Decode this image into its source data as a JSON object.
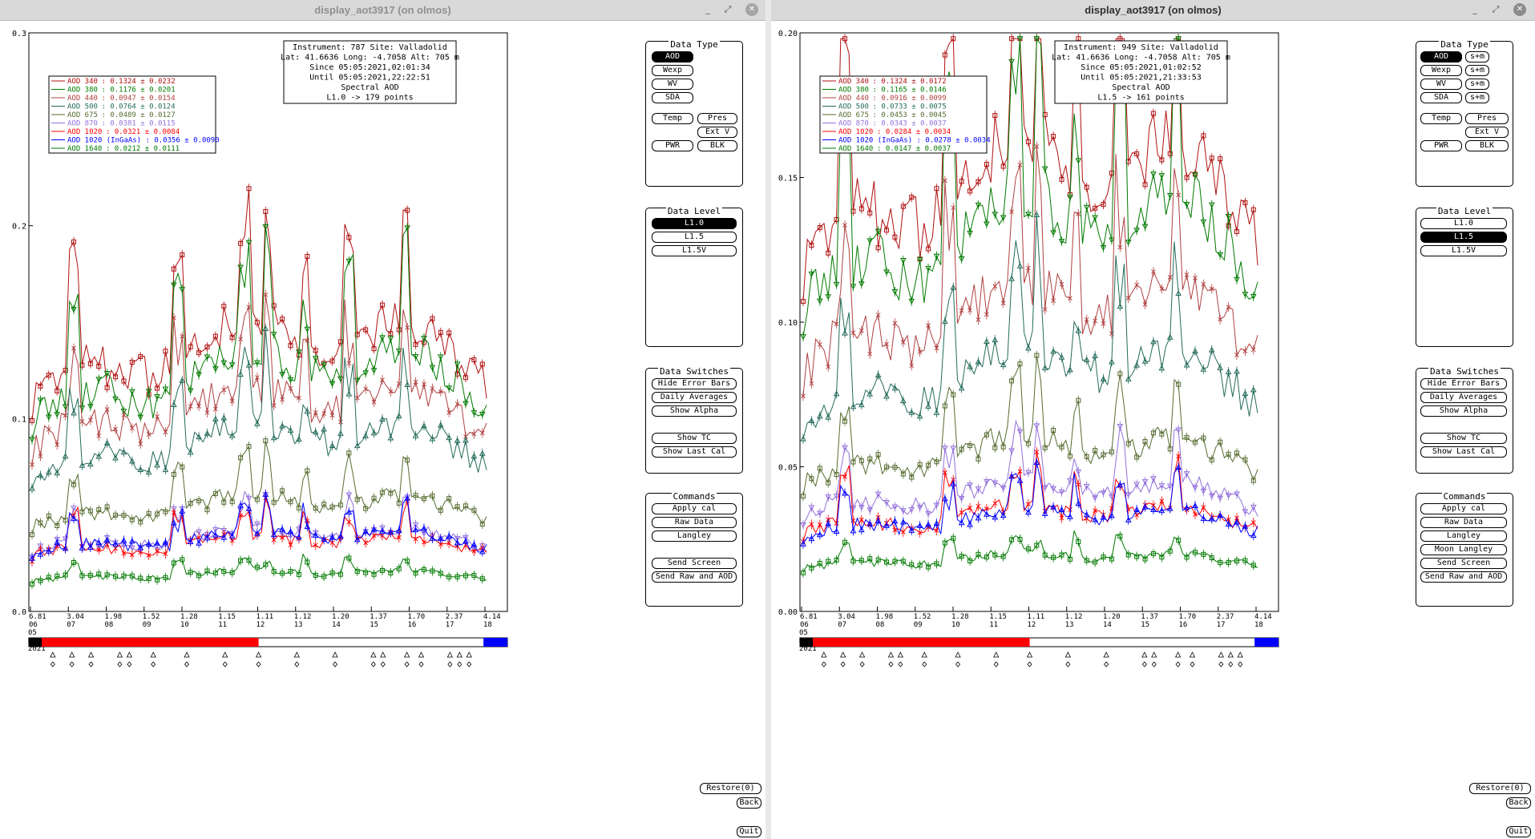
{
  "windows": [
    {
      "title": "display_aot3917 (on olmos)",
      "info": {
        "instrument": "Instrument: 787 Site: Valladolid",
        "lat": "Lat: 41.6636 Long: -4.7058 Alt: 705 m",
        "since": "Since 05:05:2021,02:01:34",
        "until": "Until 05:05:2021,22:22:51",
        "spectral": "Spectral AOD",
        "level": "L1.0 -> 179 points"
      },
      "chart_data": {
        "type": "line",
        "ylim": [
          0,
          0.3
        ],
        "yticks": [
          "0.0",
          "0.1",
          "0.2",
          "0.3"
        ],
        "xticks": [
          {
            "air": "6.81",
            "hour": "06"
          },
          {
            "air": "3.04",
            "hour": "07"
          },
          {
            "air": "1.98",
            "hour": "08"
          },
          {
            "air": "1.52",
            "hour": "09"
          },
          {
            "air": "1.28",
            "hour": "10"
          },
          {
            "air": "1.15",
            "hour": "11"
          },
          {
            "air": "1.11",
            "hour": "12"
          },
          {
            "air": "1.12",
            "hour": "13"
          },
          {
            "air": "1.20",
            "hour": "14"
          },
          {
            "air": "1.37",
            "hour": "15"
          },
          {
            "air": "1.70",
            "hour": "16"
          },
          {
            "air": "2.37",
            "hour": "17"
          },
          {
            "air": "4.14",
            "hour": "18"
          }
        ],
        "date_label": [
          "05",
          "MAY",
          "2021"
        ],
        "legend": [
          {
            "label": "AOD 340",
            "stats": ": 0.1324 ± 0.0232",
            "color": "#b01010",
            "marker": "square"
          },
          {
            "label": "AOD 380",
            "stats": ": 0.1176 ± 0.0201",
            "color": "#007a00",
            "marker": "tri-down"
          },
          {
            "label": "AOD 440",
            "stats": ": 0.0947 ± 0.0154",
            "color": "#b04040",
            "marker": "x"
          },
          {
            "label": "AOD 500",
            "stats": ": 0.0764 ± 0.0124",
            "color": "#246b5a",
            "marker": "tri-up"
          },
          {
            "label": "AOD 675",
            "stats": ": 0.0489 ± 0.0127",
            "color": "#556b2f",
            "marker": "square"
          },
          {
            "label": "AOD 870",
            "stats": ": 0.0381 ± 0.0115",
            "color": "#9370db",
            "marker": "tri-down"
          },
          {
            "label": "AOD 1020",
            "stats": ": 0.0321 ± 0.0084",
            "color": "#ff0000",
            "marker": "x"
          },
          {
            "label": "AOD 1020 (InGaAs)",
            "stats": ": 0.0356 ± 0.0090",
            "color": "#0000ff",
            "marker": "tri-up"
          },
          {
            "label": "AOD 1640",
            "stats": ": 0.0212 ± 0.0111",
            "color": "#007a00",
            "marker": "square"
          }
        ],
        "series_levels": [
          0.12,
          0.108,
          0.092,
          0.077,
          0.048,
          0.034,
          0.031,
          0.033,
          0.017
        ]
      },
      "timeline": {
        "red_start": 0.0,
        "red_end": 0.48,
        "blue_start": 0.95
      }
    },
    {
      "title": "display_aot3917 (on olmos)",
      "info": {
        "instrument": "Instrument: 949 Site: Valladolid",
        "lat": "Lat: 41.6636 Long: -4.7058 Alt: 705 m",
        "since": "Since 05:05:2021,01:02:52",
        "until": "Until 05:05:2021,21:33:53",
        "spectral": "Spectral AOD",
        "level": "L1.5 -> 161 points"
      },
      "chart_data": {
        "type": "line",
        "ylim": [
          0,
          0.2
        ],
        "yticks": [
          "0.00",
          "0.05",
          "0.10",
          "0.15",
          "0.20"
        ],
        "xticks": [
          {
            "air": "6.81",
            "hour": "06"
          },
          {
            "air": "3.04",
            "hour": "07"
          },
          {
            "air": "1.98",
            "hour": "08"
          },
          {
            "air": "1.52",
            "hour": "09"
          },
          {
            "air": "1.28",
            "hour": "10"
          },
          {
            "air": "1.15",
            "hour": "11"
          },
          {
            "air": "1.11",
            "hour": "12"
          },
          {
            "air": "1.12",
            "hour": "13"
          },
          {
            "air": "1.20",
            "hour": "14"
          },
          {
            "air": "1.37",
            "hour": "15"
          },
          {
            "air": "1.70",
            "hour": "16"
          },
          {
            "air": "2.37",
            "hour": "17"
          },
          {
            "air": "4.14",
            "hour": "18"
          }
        ],
        "date_label": [
          "05",
          "MAY",
          "2021"
        ],
        "legend": [
          {
            "label": "AOD 340",
            "stats": ": 0.1324 ± 0.0172",
            "color": "#b01010",
            "marker": "square"
          },
          {
            "label": "AOD 380",
            "stats": ": 0.1165 ± 0.0146",
            "color": "#007a00",
            "marker": "tri-down"
          },
          {
            "label": "AOD 440",
            "stats": ": 0.0916 ± 0.0099",
            "color": "#b04040",
            "marker": "x"
          },
          {
            "label": "AOD 500",
            "stats": ": 0.0733 ± 0.0075",
            "color": "#246b5a",
            "marker": "tri-up"
          },
          {
            "label": "AOD 675",
            "stats": ": 0.0453 ± 0.0045",
            "color": "#556b2f",
            "marker": "square"
          },
          {
            "label": "AOD 870",
            "stats": ": 0.0343 ± 0.0037",
            "color": "#9370db",
            "marker": "tri-down"
          },
          {
            "label": "AOD 1020",
            "stats": ": 0.0284 ± 0.0034",
            "color": "#ff0000",
            "marker": "x"
          },
          {
            "label": "AOD 1020 (InGaAs)",
            "stats": ": 0.0278 ± 0.0034",
            "color": "#0000ff",
            "marker": "tri-up"
          },
          {
            "label": "AOD 1640",
            "stats": ": 0.0147 ± 0.0037",
            "color": "#007a00",
            "marker": "square"
          }
        ],
        "series_levels": [
          0.13,
          0.115,
          0.09,
          0.072,
          0.048,
          0.036,
          0.029,
          0.028,
          0.016
        ]
      },
      "timeline": {
        "red_start": 0.0,
        "red_end": 0.48,
        "blue_start": 0.95
      }
    }
  ],
  "sidebar": {
    "data_type_title": "Data Type",
    "data_type": [
      "AOD",
      "Wexp",
      "WV",
      "SDA"
    ],
    "sm": [
      "s+m",
      "s+m",
      "s+m",
      "s+m"
    ],
    "temp": "Temp",
    "pres": "Pres",
    "extv": "Ext V",
    "pwr": "PWR",
    "blk": "BLK",
    "data_level_title": "Data Level",
    "levels": [
      "L1.0",
      "L1.5",
      "L1.5V"
    ],
    "switches_title": "Data Switches",
    "switches": [
      "Hide Error Bars",
      "Daily Averages",
      "Show Alpha",
      "Show TC",
      "Show Last Cal"
    ],
    "commands_title": "Commands",
    "commands_left": [
      "Apply cal",
      "Raw Data",
      "Langley",
      "Send Screen",
      "Send Raw and AOD"
    ],
    "commands_right": [
      "Apply cal",
      "Raw Data",
      "Langley",
      "Moon Langley",
      "Send Screen",
      "Send Raw and AOD"
    ],
    "restore": "Restore(0)",
    "back": "Back",
    "quit": "Quit"
  }
}
